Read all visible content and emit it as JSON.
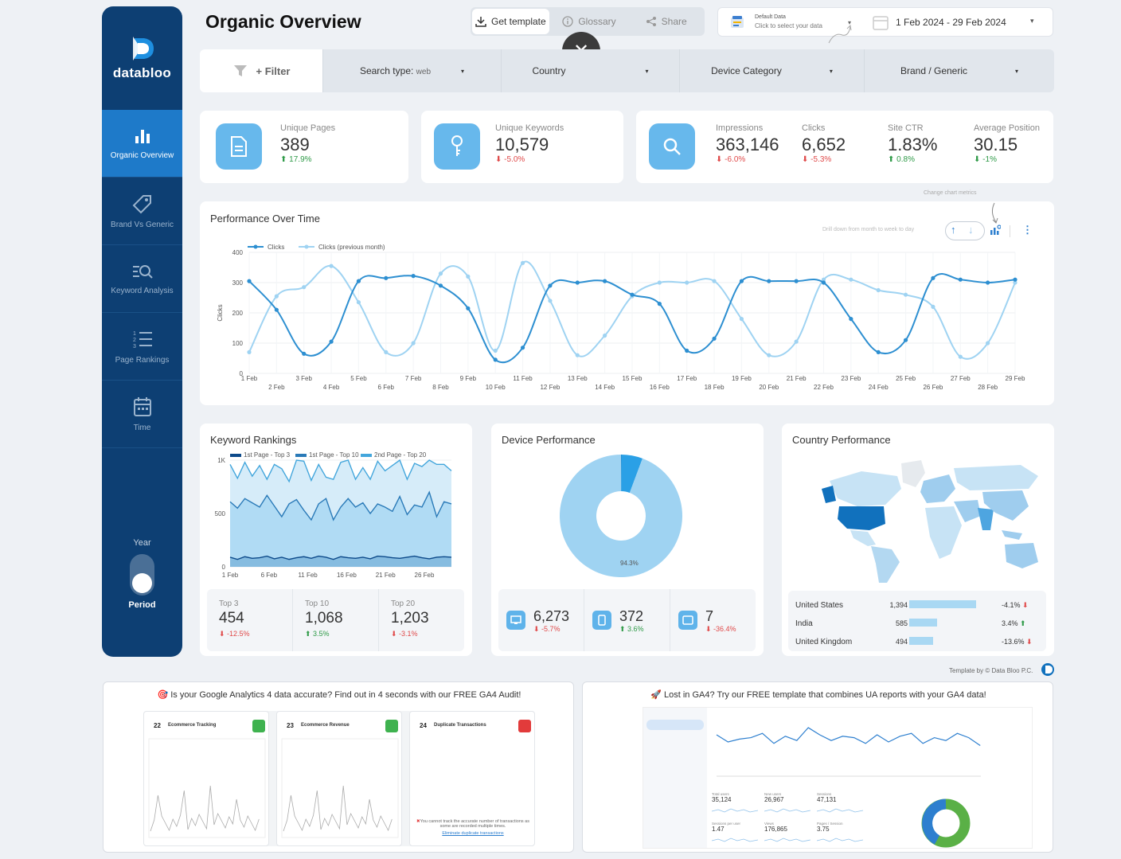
{
  "sidebar": {
    "logo": "databloo",
    "items": [
      {
        "label": "Organic Overview",
        "icon": "bar-chart-icon"
      },
      {
        "label": "Brand Vs Generic",
        "icon": "tag-icon"
      },
      {
        "label": "Keyword Analysis",
        "icon": "keyword-search-icon"
      },
      {
        "label": "Page Rankings",
        "icon": "ranking-list-icon"
      },
      {
        "label": "Time",
        "icon": "calendar-icon"
      }
    ],
    "toggle_top": "Year",
    "toggle_bottom": "Period"
  },
  "header": {
    "title": "Organic Overview",
    "get_template": "Get template",
    "glossary": "Glossary",
    "share": "Share",
    "datasource_title": "Default Data",
    "datasource_sub": "Click to select your data",
    "date_range": "1 Feb 2024 - 29 Feb 2024"
  },
  "filters": {
    "filter": "+ Filter",
    "search_type": "Search type:",
    "search_type_value": "web",
    "country": "Country",
    "device": "Device Category",
    "brand": "Brand / Generic"
  },
  "kpis": {
    "pages": {
      "label": "Unique Pages",
      "value": "389",
      "delta": "17.9%"
    },
    "keywords": {
      "label": "Unique Keywords",
      "value": "10,579",
      "delta": "-5.0%"
    },
    "impressions": {
      "label": "Impressions",
      "value": "363,146",
      "delta": "-6.0%"
    },
    "clicks": {
      "label": "Clicks",
      "value": "6,652",
      "delta": "-5.3%"
    },
    "ctr": {
      "label": "Site CTR",
      "value": "1.83%",
      "delta": "0.8%"
    },
    "position": {
      "label": "Average Position",
      "value": "30.15",
      "delta": "-1%"
    }
  },
  "perf": {
    "title": "Performance Over Time",
    "hint_metrics": "Change chart metrics",
    "hint_drill": "Drill down from month to week to day"
  },
  "keyword_rankings": {
    "title": "Keyword Rankings",
    "stats": [
      {
        "label": "Top 3",
        "value": "454",
        "delta": "-12.5%"
      },
      {
        "label": "Top 10",
        "value": "1,068",
        "delta": "3.5%"
      },
      {
        "label": "Top 20",
        "value": "1,203",
        "delta": "-3.1%"
      }
    ]
  },
  "device": {
    "title": "Device Performance",
    "pct_label": "94.3%",
    "stats": [
      {
        "icon": "desktop-icon",
        "value": "6,273",
        "delta": "-5.7%"
      },
      {
        "icon": "mobile-icon",
        "value": "372",
        "delta": "3.6%"
      },
      {
        "icon": "tablet-icon",
        "value": "7",
        "delta": "-36.4%"
      }
    ]
  },
  "country": {
    "title": "Country Performance",
    "rows": [
      {
        "name": "United States",
        "value": "1,394",
        "delta": "-4.1%"
      },
      {
        "name": "India",
        "value": "585",
        "delta": "3.4%"
      },
      {
        "name": "United Kingdom",
        "value": "494",
        "delta": "-13.6%"
      }
    ]
  },
  "credit": "Template by © Data Bloo P.C.",
  "promo": {
    "left": "Is your Google Analytics 4 data accurate? Find out in 4 seconds with our FREE GA4 Audit!",
    "right": "Lost in GA4? Try our FREE template that combines UA reports with your GA4 data!",
    "audit_cards": [
      {
        "num": "22",
        "title": "Ecommerce Tracking"
      },
      {
        "num": "23",
        "title": "Ecommerce Revenue"
      },
      {
        "num": "24",
        "title": "Duplicate Transactions"
      }
    ],
    "audit_note": "You cannot track the accurate number of transactions as some are recorded multiple times.",
    "audit_link": "Eliminate duplicate transactions",
    "ga4_metrics": [
      {
        "label": "Total users",
        "value": "35,124"
      },
      {
        "label": "New users",
        "value": "26,967"
      },
      {
        "label": "Sessions",
        "value": "47,131"
      },
      {
        "label": "Sessions per user",
        "value": "1.47"
      },
      {
        "label": "Views",
        "value": "176,865"
      },
      {
        "label": "Pages / Session",
        "value": "3.75"
      }
    ]
  },
  "chart_data": [
    {
      "type": "line",
      "title": "Performance Over Time",
      "ylabel": "Clicks",
      "ylim": [
        0,
        400
      ],
      "yticks": [
        0,
        100,
        200,
        300,
        400
      ],
      "categories": [
        "1 Feb",
        "2 Feb",
        "3 Feb",
        "4 Feb",
        "5 Feb",
        "6 Feb",
        "7 Feb",
        "8 Feb",
        "9 Feb",
        "10 Feb",
        "11 Feb",
        "12 Feb",
        "13 Feb",
        "14 Feb",
        "15 Feb",
        "16 Feb",
        "17 Feb",
        "18 Feb",
        "19 Feb",
        "20 Feb",
        "21 Feb",
        "22 Feb",
        "23 Feb",
        "24 Feb",
        "25 Feb",
        "26 Feb",
        "27 Feb",
        "28 Feb",
        "29 Feb"
      ],
      "series": [
        {
          "name": "Clicks",
          "color": "#2d8fd1",
          "values": [
            305,
            210,
            65,
            105,
            305,
            315,
            322,
            290,
            215,
            45,
            85,
            290,
            300,
            305,
            260,
            230,
            75,
            115,
            305,
            305,
            305,
            300,
            180,
            70,
            110,
            315,
            310,
            300,
            310
          ]
        },
        {
          "name": "Clicks (previous month)",
          "color": "#9fd3f2",
          "values": [
            70,
            255,
            285,
            355,
            235,
            70,
            100,
            330,
            320,
            75,
            365,
            240,
            60,
            125,
            255,
            300,
            300,
            305,
            180,
            60,
            105,
            310,
            310,
            275,
            260,
            220,
            55,
            100,
            300
          ]
        }
      ]
    },
    {
      "type": "area",
      "title": "Keyword Rankings",
      "ylim": [
        0,
        1000
      ],
      "yticks": [
        "0",
        "500",
        "1K"
      ],
      "xticks": [
        "1 Feb",
        "6 Feb",
        "11 Feb",
        "16 Feb",
        "21 Feb",
        "26 Feb"
      ],
      "series": [
        {
          "name": "2nd Page - Top 20",
          "color": "#cfe9f8",
          "values": [
            960,
            830,
            980,
            850,
            950,
            820,
            960,
            920,
            800,
            1000,
            990,
            810,
            960,
            840,
            820,
            980,
            1000,
            820,
            930,
            820,
            990,
            900,
            950,
            1000,
            820,
            970,
            940,
            1000,
            960,
            960,
            900
          ]
        },
        {
          "name": "1st Page - Top 10",
          "color": "#a9d8f3",
          "values": [
            610,
            550,
            640,
            600,
            560,
            670,
            570,
            470,
            590,
            630,
            530,
            440,
            590,
            640,
            440,
            560,
            640,
            560,
            600,
            500,
            590,
            560,
            520,
            660,
            490,
            580,
            560,
            700,
            470,
            610,
            590
          ]
        },
        {
          "name": "1st Page - Top 3",
          "color": "#7fb6dc",
          "values": [
            90,
            70,
            95,
            80,
            85,
            100,
            75,
            90,
            70,
            85,
            95,
            80,
            100,
            90,
            70,
            95,
            85,
            80,
            90,
            75,
            100,
            95,
            85,
            80,
            90,
            100,
            85,
            75,
            90,
            95,
            90
          ]
        }
      ]
    },
    {
      "type": "pie",
      "title": "Device Performance",
      "slices": [
        {
          "label": "Desktop",
          "value": 94.3,
          "color": "#9fd3f2"
        },
        {
          "label": "Mobile",
          "value": 5.6,
          "color": "#2aa0e6"
        },
        {
          "label": "Tablet",
          "value": 0.1,
          "color": "#0b72b9"
        }
      ]
    },
    {
      "type": "bar",
      "title": "Country Performance",
      "categories": [
        "United States",
        "India",
        "United Kingdom"
      ],
      "values": [
        1394,
        585,
        494
      ]
    }
  ]
}
